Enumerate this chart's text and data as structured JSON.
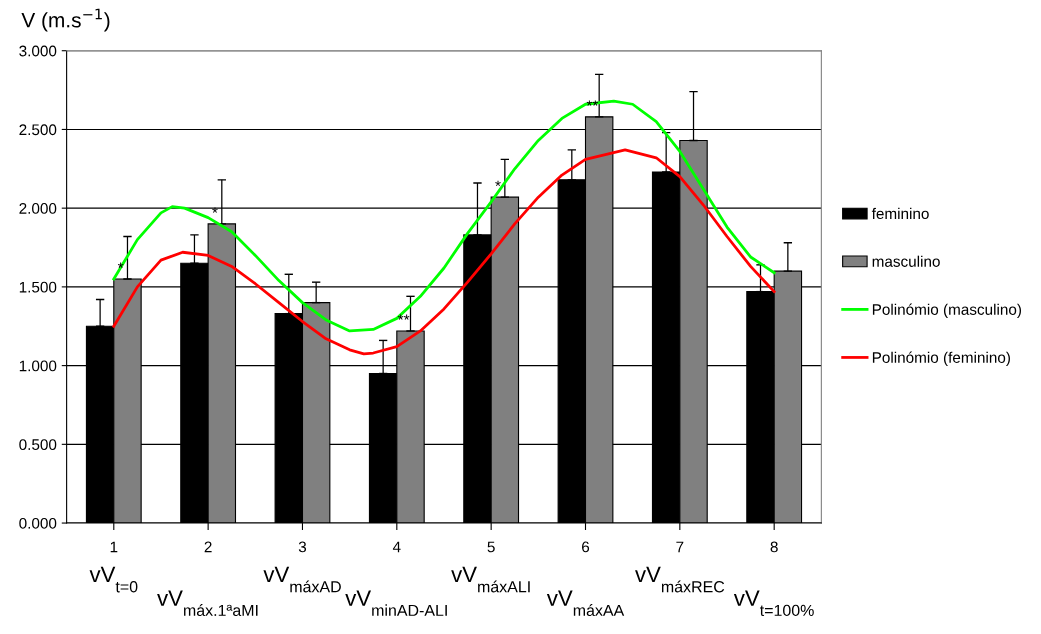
{
  "chart_data": {
    "type": "bar",
    "ylabel": "V (m.s$^{−1}$)",
    "x": [
      1,
      2,
      3,
      4,
      5,
      6,
      7,
      8
    ],
    "xlim": [
      0.5,
      8.5
    ],
    "xticks": [
      1,
      2,
      3,
      4,
      5,
      6,
      7,
      8
    ],
    "ylim": [
      0,
      3
    ],
    "yticks": [
      {
        "value": 0,
        "label": "0.000"
      },
      {
        "value": 0.5,
        "label": "0.500"
      },
      {
        "value": 1,
        "label": "1.000"
      },
      {
        "value": 1.5,
        "label": "1.500"
      },
      {
        "value": 2,
        "label": "2.000"
      },
      {
        "value": 2.5,
        "label": "2.500"
      },
      {
        "value": 3,
        "label": "3.000"
      }
    ],
    "grid": "y",
    "legend": "right",
    "series": [
      {
        "name": "feminino",
        "color": "#000000",
        "values": [
          1.25,
          1.65,
          1.33,
          0.95,
          1.83,
          2.18,
          2.23,
          1.47
        ],
        "errors": [
          [
            1.25,
            1.42
          ],
          [
            1.65,
            1.83
          ],
          [
            1.33,
            1.58
          ],
          [
            0.95,
            1.16
          ],
          [
            1.83,
            2.16
          ],
          [
            2.18,
            2.37
          ],
          [
            2.23,
            2.48
          ],
          [
            1.47,
            1.64
          ]
        ]
      },
      {
        "name": "masculino",
        "color": "#808080",
        "values": [
          1.55,
          1.9,
          1.4,
          1.22,
          2.07,
          2.58,
          2.43,
          1.6
        ],
        "errors": [
          [
            1.55,
            1.82
          ],
          [
            1.9,
            2.18
          ],
          [
            1.4,
            1.53
          ],
          [
            1.22,
            1.44
          ],
          [
            2.07,
            2.31
          ],
          [
            2.58,
            2.85
          ],
          [
            2.43,
            2.74
          ],
          [
            1.6,
            1.78
          ]
        ],
        "value_labels": [
          "*",
          "*",
          null,
          "**",
          "*",
          "**",
          null,
          null
        ]
      },
      {
        "name": "Polinómio (masculino)",
        "type": "line",
        "color": "#00ff00",
        "x": [
          1,
          1.25,
          1.5,
          1.62,
          1.75,
          2,
          2.25,
          2.5,
          2.75,
          3,
          3.25,
          3.5,
          3.75,
          4,
          4.25,
          4.5,
          4.75,
          5,
          5.25,
          5.5,
          5.75,
          6,
          6.3,
          6.5,
          6.75,
          7,
          7.25,
          7.5,
          7.75,
          8
        ],
        "values": [
          1.55,
          1.8,
          1.97,
          2.01,
          2.0,
          1.94,
          1.85,
          1.7,
          1.54,
          1.4,
          1.29,
          1.22,
          1.23,
          1.3,
          1.44,
          1.62,
          1.84,
          2.04,
          2.25,
          2.43,
          2.57,
          2.66,
          2.68,
          2.66,
          2.55,
          2.36,
          2.12,
          1.88,
          1.69,
          1.59
        ]
      },
      {
        "name": "Polinómio (feminino)",
        "type": "line",
        "color": "#ff0000",
        "x": [
          1,
          1.25,
          1.5,
          1.73,
          2,
          2.25,
          2.5,
          2.75,
          3,
          3.25,
          3.5,
          3.65,
          3.75,
          4,
          4.25,
          4.5,
          4.75,
          5,
          5.25,
          5.5,
          5.75,
          6,
          6.42,
          6.75,
          7,
          7.25,
          7.5,
          7.75,
          8
        ],
        "values": [
          1.25,
          1.5,
          1.67,
          1.72,
          1.7,
          1.63,
          1.52,
          1.4,
          1.28,
          1.17,
          1.1,
          1.075,
          1.08,
          1.12,
          1.22,
          1.36,
          1.53,
          1.71,
          1.9,
          2.07,
          2.21,
          2.31,
          2.37,
          2.32,
          2.2,
          2.02,
          1.82,
          1.63,
          1.47
        ]
      }
    ],
    "annotations": [
      "vV$_{t=0}$",
      "vV$_{máx.1ªaMI}$",
      "vV$_{máxAD}$",
      "vV$_{minAD-ALI}$",
      "vV$_{máxALI}$",
      "vV$_{máxAA}$",
      "vV$_{máxREC}$",
      "vV$_{t=100%}$"
    ]
  }
}
